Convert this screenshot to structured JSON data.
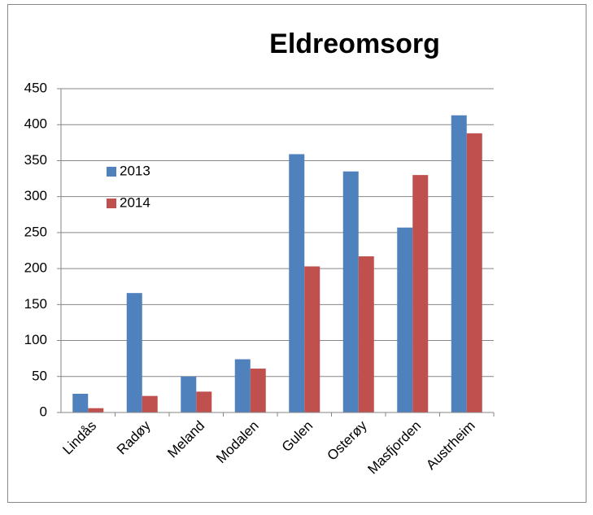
{
  "chart_data": {
    "type": "bar",
    "title": "Eldreomsorg",
    "categories": [
      "Lindås",
      "Radøy",
      "Meland",
      "Modalen",
      "Gulen",
      "Osterøy",
      "Masfjorden",
      "Austrheim"
    ],
    "series": [
      {
        "name": "2013",
        "color": "#4f81bd",
        "values": [
          26,
          166,
          50,
          74,
          359,
          335,
          257,
          413
        ]
      },
      {
        "name": "2014",
        "color": "#c0504d",
        "values": [
          6,
          23,
          29,
          61,
          203,
          217,
          330,
          388
        ]
      }
    ],
    "ylim": [
      0,
      450
    ],
    "yticks": [
      0,
      50,
      100,
      150,
      200,
      250,
      300,
      350,
      400,
      450
    ],
    "grid": true,
    "legend": "left"
  }
}
